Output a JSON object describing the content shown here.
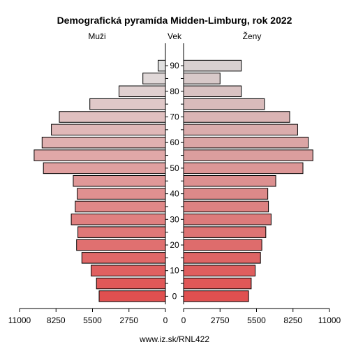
{
  "chart_data": {
    "type": "bar",
    "title": "Demografická pyramída Midden-Limburg, rok 2022",
    "left_label": "Muži",
    "center_label": "Vek",
    "right_label": "Ženy",
    "footer": "www.iz.sk/RNL422",
    "age_groups": [
      "0-4",
      "5-9",
      "10-14",
      "15-19",
      "20-24",
      "25-29",
      "30-34",
      "35-39",
      "40-44",
      "45-49",
      "50-54",
      "55-59",
      "60-64",
      "65-69",
      "70-74",
      "75-79",
      "80-84",
      "85-89",
      "90+"
    ],
    "age_tick_labels": [
      "0",
      "10",
      "20",
      "30",
      "40",
      "50",
      "60",
      "70",
      "80",
      "90"
    ],
    "series": [
      {
        "name": "Muži",
        "values": [
          5000,
          5200,
          5600,
          6300,
          6700,
          6600,
          7100,
          6800,
          6650,
          6950,
          9200,
          9900,
          9300,
          8600,
          8000,
          5700,
          3500,
          1700,
          550
        ]
      },
      {
        "name": "Ženy",
        "values": [
          4900,
          5100,
          5400,
          5800,
          5900,
          6200,
          6600,
          6400,
          6350,
          6950,
          9000,
          9750,
          9400,
          8600,
          8000,
          6100,
          4350,
          2750,
          4350
        ]
      }
    ],
    "x_ticks_left": [
      "11000",
      "8250",
      "5500",
      "2750",
      "0"
    ],
    "x_ticks_right": [
      "0",
      "2750",
      "5500",
      "8250",
      "11000"
    ],
    "xlim": [
      0,
      11000
    ],
    "colors": {
      "bottom": "#e05050",
      "top": "#e0e0e0",
      "top_female": "#d8d0d0",
      "outline": "#000000"
    }
  }
}
